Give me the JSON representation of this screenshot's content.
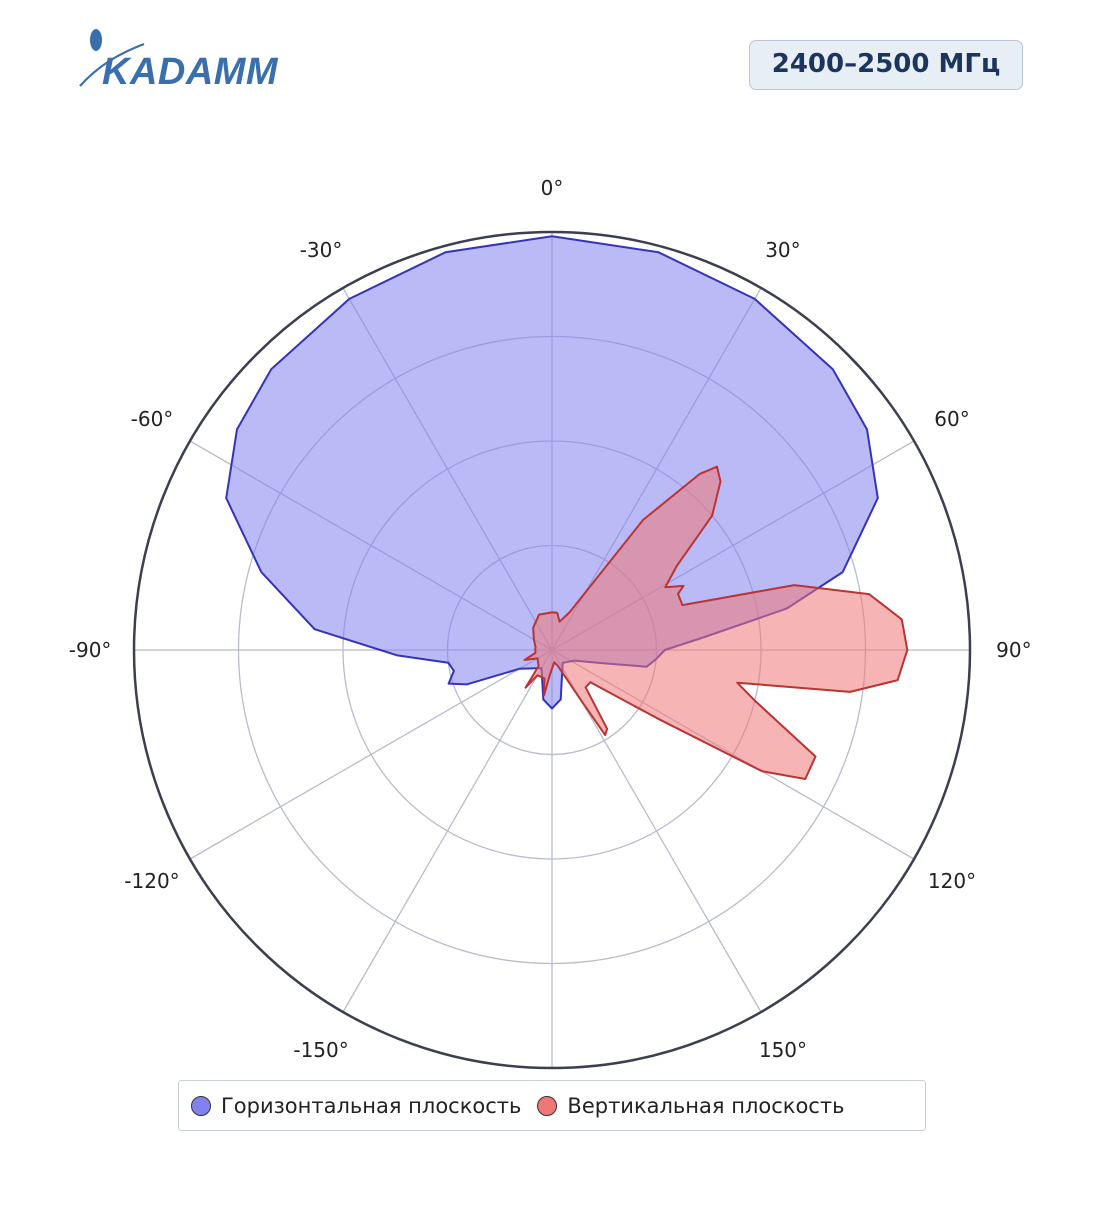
{
  "brand": {
    "logo_text": "KADAMM",
    "logo_color": "#3a6fae"
  },
  "badge": {
    "text": "2400–2500 МГц"
  },
  "chart_data": {
    "type": "polar",
    "angle_ticks": [
      "0°",
      "30°",
      "60°",
      "90°",
      "120°",
      "150°",
      "-150°",
      "-120°",
      "-90°",
      "-60°",
      "-30°"
    ],
    "angle_tick_values": [
      0,
      30,
      60,
      90,
      120,
      150,
      -150,
      -120,
      -90,
      -60,
      -30
    ],
    "radial_range": [
      0,
      1
    ],
    "radial_grid": [
      0.25,
      0.5,
      0.75
    ],
    "grid": true,
    "legend_position": "bottom",
    "series": [
      {
        "name": "Горизонтальная плоскость",
        "fill": "#8181f0",
        "stroke": "#3333bb",
        "points": [
          [
            0,
            0.99
          ],
          [
            15,
            0.985
          ],
          [
            30,
            0.97
          ],
          [
            45,
            0.95
          ],
          [
            55,
            0.92
          ],
          [
            65,
            0.86
          ],
          [
            75,
            0.72
          ],
          [
            80,
            0.57
          ],
          [
            85,
            0.37
          ],
          [
            90,
            0.27
          ],
          [
            95,
            0.25
          ],
          [
            100,
            0.23
          ],
          [
            105,
            0.12
          ],
          [
            115,
            0.06
          ],
          [
            140,
            0.04
          ],
          [
            170,
            0.12
          ],
          [
            180,
            0.14
          ],
          [
            190,
            0.12
          ],
          [
            210,
            0.05
          ],
          [
            240,
            0.09
          ],
          [
            248,
            0.22
          ],
          [
            252,
            0.26
          ],
          [
            258,
            0.24
          ],
          [
            263,
            0.25
          ],
          [
            268,
            0.37
          ],
          [
            275,
            0.57
          ],
          [
            285,
            0.72
          ],
          [
            295,
            0.86
          ],
          [
            305,
            0.92
          ],
          [
            315,
            0.95
          ],
          [
            330,
            0.97
          ],
          [
            345,
            0.985
          ],
          [
            360,
            0.99
          ]
        ]
      },
      {
        "name": "Вертикальная плоскость",
        "fill": "#ee7777",
        "stroke": "#bb3333",
        "points": [
          [
            0,
            0.09
          ],
          [
            8,
            0.09
          ],
          [
            15,
            0.07
          ],
          [
            25,
            0.1
          ],
          [
            35,
            0.38
          ],
          [
            40,
            0.55
          ],
          [
            42,
            0.59
          ],
          [
            45,
            0.57
          ],
          [
            50,
            0.5
          ],
          [
            56,
            0.36
          ],
          [
            61,
            0.31
          ],
          [
            64,
            0.35
          ],
          [
            66,
            0.33
          ],
          [
            71,
            0.33
          ],
          [
            75,
            0.6
          ],
          [
            80,
            0.77
          ],
          [
            85,
            0.84
          ],
          [
            90,
            0.85
          ],
          [
            95,
            0.83
          ],
          [
            98,
            0.72
          ],
          [
            100,
            0.45
          ],
          [
            104,
            0.5
          ],
          [
            112,
            0.68
          ],
          [
            117,
            0.68
          ],
          [
            120,
            0.58
          ],
          [
            123,
            0.3
          ],
          [
            130,
            0.12
          ],
          [
            138,
            0.12
          ],
          [
            145,
            0.23
          ],
          [
            148,
            0.24
          ],
          [
            150,
            0.14
          ],
          [
            160,
            0.04
          ],
          [
            170,
            0.03
          ],
          [
            185,
            0.06
          ],
          [
            190,
            0.11
          ],
          [
            195,
            0.07
          ],
          [
            210,
            0.07
          ],
          [
            215,
            0.11
          ],
          [
            220,
            0.05
          ],
          [
            240,
            0.04
          ],
          [
            250,
            0.07
          ],
          [
            260,
            0.04
          ],
          [
            270,
            0.04
          ],
          [
            280,
            0.04
          ],
          [
            300,
            0.05
          ],
          [
            320,
            0.07
          ],
          [
            340,
            0.09
          ],
          [
            360,
            0.09
          ]
        ]
      }
    ]
  }
}
